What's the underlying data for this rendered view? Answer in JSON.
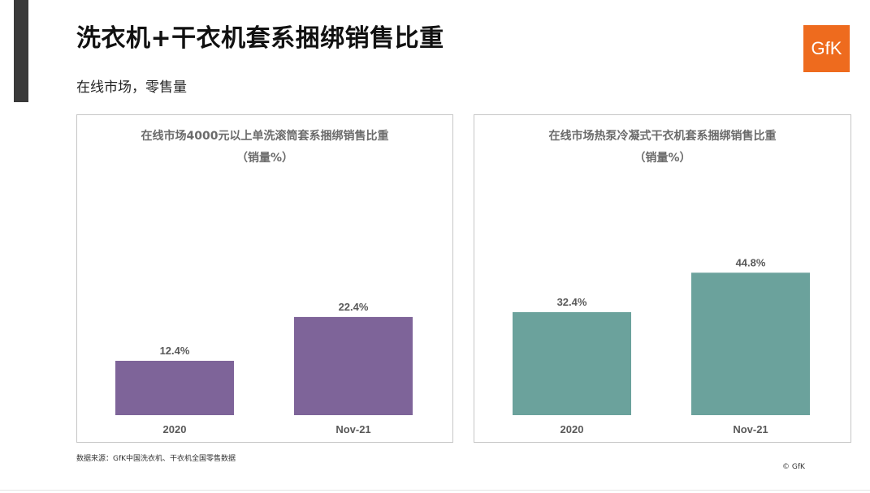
{
  "title": "洗衣机+干衣机套系捆绑销售比重",
  "subtitle": "在线市场，零售量",
  "logo": "GfK",
  "source": "数据来源：GfK中国洗衣机、干衣机全国零售数据",
  "copyright": "© GfK",
  "chart_data": [
    {
      "type": "bar",
      "title": "在线市场4000元以上单洗滚筒套系捆绑销售比重",
      "subtitle": "（销量%）",
      "categories": [
        "2020",
        "Nov-21"
      ],
      "values": [
        12.4,
        22.4
      ],
      "labels": [
        "12.4%",
        "22.4%"
      ],
      "color": "#7e6499",
      "ylim": [
        0,
        37
      ]
    },
    {
      "type": "bar",
      "title": "在线市场热泵冷凝式干衣机套系捆绑销售比重",
      "subtitle": "（销量%）",
      "categories": [
        "2020",
        "Nov-21"
      ],
      "values": [
        32.4,
        44.8
      ],
      "labels": [
        "32.4%",
        "44.8%"
      ],
      "color": "#6ba29c",
      "ylim": [
        0,
        51
      ]
    }
  ]
}
